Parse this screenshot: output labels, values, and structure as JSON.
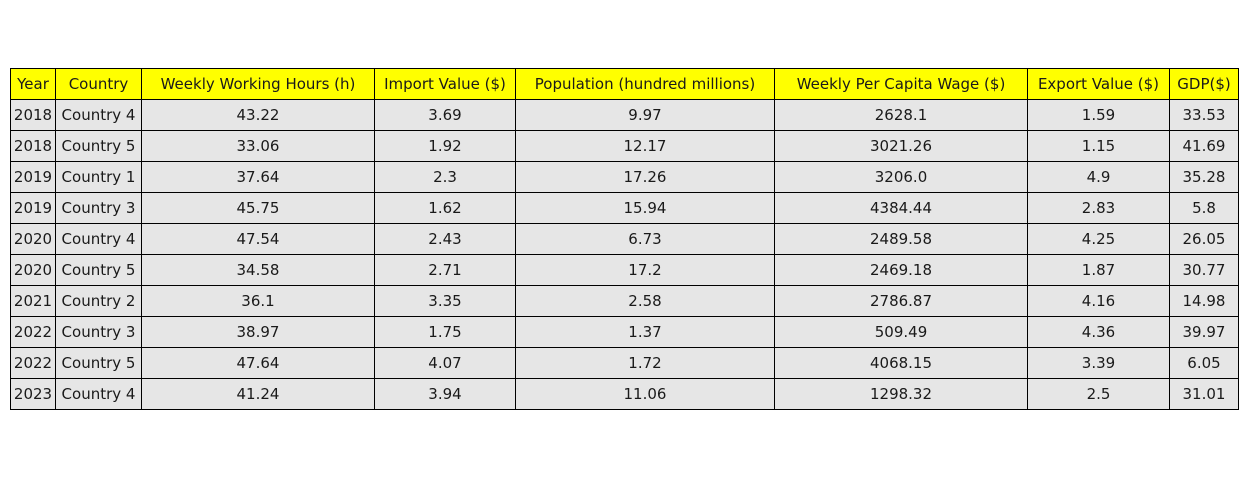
{
  "colors": {
    "header_bg": "#ffff00",
    "cell_bg": "#e6e6e6",
    "border": "#000000",
    "text": "#1a1a1a"
  },
  "chart_data": {
    "type": "table",
    "columns": [
      "Year",
      "Country",
      "Weekly Working Hours (h)",
      "Import Value ($)",
      "Population (hundred millions)",
      "Weekly Per Capita Wage ($)",
      "Export Value ($)",
      "GDP($)"
    ],
    "rows": [
      [
        "2018",
        "Country 4",
        "43.22",
        "3.69",
        "9.97",
        "2628.1",
        "1.59",
        "33.53"
      ],
      [
        "2018",
        "Country 5",
        "33.06",
        "1.92",
        "12.17",
        "3021.26",
        "1.15",
        "41.69"
      ],
      [
        "2019",
        "Country 1",
        "37.64",
        "2.3",
        "17.26",
        "3206.0",
        "4.9",
        "35.28"
      ],
      [
        "2019",
        "Country 3",
        "45.75",
        "1.62",
        "15.94",
        "4384.44",
        "2.83",
        "5.8"
      ],
      [
        "2020",
        "Country 4",
        "47.54",
        "2.43",
        "6.73",
        "2489.58",
        "4.25",
        "26.05"
      ],
      [
        "2020",
        "Country 5",
        "34.58",
        "2.71",
        "17.2",
        "2469.18",
        "1.87",
        "30.77"
      ],
      [
        "2021",
        "Country 2",
        "36.1",
        "3.35",
        "2.58",
        "2786.87",
        "4.16",
        "14.98"
      ],
      [
        "2022",
        "Country 3",
        "38.97",
        "1.75",
        "1.37",
        "509.49",
        "4.36",
        "39.97"
      ],
      [
        "2022",
        "Country 5",
        "47.64",
        "4.07",
        "1.72",
        "4068.15",
        "3.39",
        "6.05"
      ],
      [
        "2023",
        "Country 4",
        "41.24",
        "3.94",
        "11.06",
        "1298.32",
        "2.5",
        "31.01"
      ]
    ]
  }
}
